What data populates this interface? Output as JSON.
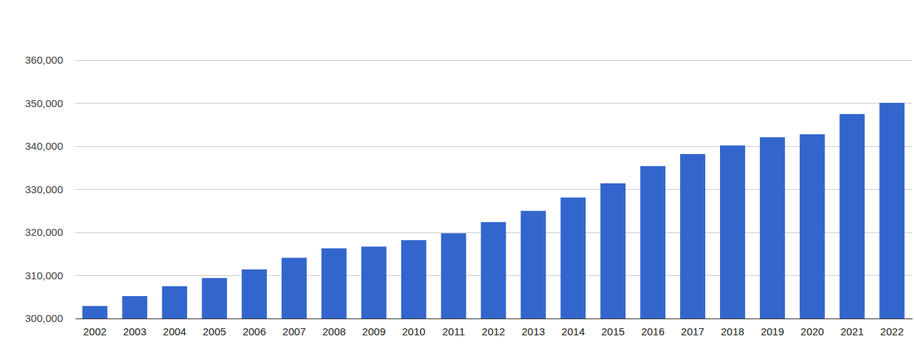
{
  "chart_data": {
    "type": "bar",
    "categories": [
      "2002",
      "2003",
      "2004",
      "2005",
      "2006",
      "2007",
      "2008",
      "2009",
      "2010",
      "2011",
      "2012",
      "2013",
      "2014",
      "2015",
      "2016",
      "2017",
      "2018",
      "2019",
      "2020",
      "2021",
      "2022"
    ],
    "values": [
      302900,
      305200,
      307500,
      309400,
      311400,
      314100,
      316300,
      316700,
      318200,
      319800,
      322400,
      325000,
      328100,
      331400,
      335400,
      338200,
      340200,
      342100,
      342800,
      347500,
      350100
    ],
    "color": "#3366cc",
    "ylim": [
      300000,
      360000
    ],
    "yticks": [
      {
        "value": 300000,
        "label": "300,000"
      },
      {
        "value": 310000,
        "label": "310,000"
      },
      {
        "value": 320000,
        "label": "320,000"
      },
      {
        "value": 330000,
        "label": "330,000"
      },
      {
        "value": 340000,
        "label": "340,000"
      },
      {
        "value": 350000,
        "label": "350,000"
      },
      {
        "value": 360000,
        "label": "360,000"
      }
    ],
    "grid": true
  }
}
